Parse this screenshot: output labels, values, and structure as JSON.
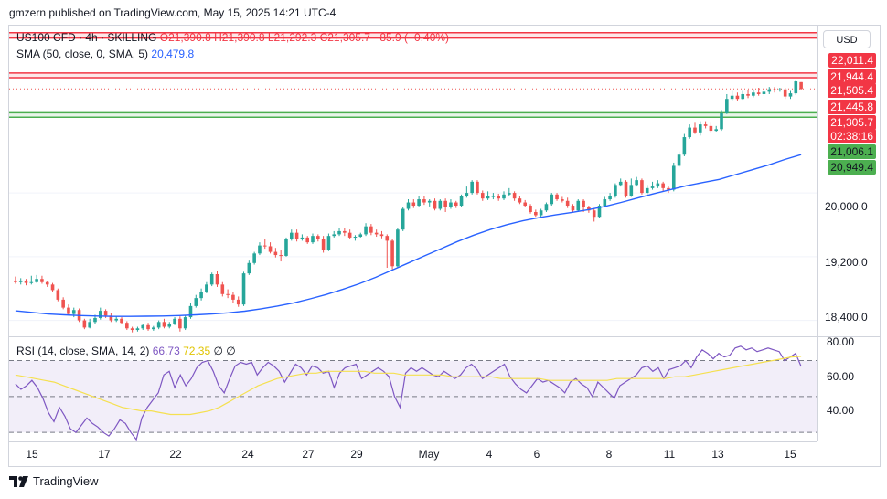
{
  "credit": "gmzern published on TradingView.com, May 15, 2025 14:21 UTC-4",
  "brand": "TradingView",
  "currency": "USD",
  "legend": {
    "symbol": "US100 CFD · 4h · SKILLING",
    "o": "O21,390.8",
    "h": "H21,390.8",
    "l": "L21,292.3",
    "c": "C21,305.7",
    "change": "−85.9 (−0.40%)",
    "sma_label": "SMA (50, close, 0, SMA, 5)",
    "sma_value": "20,479.8",
    "rsi_label": "RSI (14, close, SMA, 14, 2)",
    "rsi_value": "66.73",
    "rsi_ma_value": "72.35",
    "rsi_extra1": "∅",
    "rsi_extra2": "∅"
  },
  "colors": {
    "up": "#26a69a",
    "down": "#ef5350",
    "sma": "#2962ff",
    "rsi": "#7e57c2",
    "rsi_ma": "#f5e050",
    "resistance": "#f23645",
    "support": "#4caf50"
  },
  "price_labels": [
    {
      "text": "22,011.4",
      "style": "resist"
    },
    {
      "text": "21,944.4",
      "style": "resist"
    },
    {
      "text": "21,505.4",
      "style": "resist"
    },
    {
      "text": "21,445.8",
      "style": "resist"
    },
    {
      "text": "21,305.7",
      "style": "last"
    },
    {
      "text": "02:38:16",
      "style": "last"
    },
    {
      "text": "21,006.1",
      "style": "support"
    },
    {
      "text": "20,949.4",
      "style": "support"
    }
  ],
  "chart_data": {
    "type": "candlestick",
    "price_axis_ticks": [
      "20,000.0",
      "19,200.0",
      "18,400.0"
    ],
    "rsi_axis_ticks": [
      "80.00",
      "60.00",
      "40.00"
    ],
    "x_ticks": [
      "15",
      "17",
      "22",
      "24",
      "27",
      "29",
      "May",
      "4",
      "6",
      "8",
      "11",
      "13",
      "15"
    ],
    "price_ylim": [
      18200,
      22100
    ],
    "rsi_ylim": [
      25,
      83
    ],
    "rsi_bands": [
      70,
      50,
      30
    ],
    "levels": {
      "resistance": [
        [
          21944.4,
          22011.4
        ],
        [
          21445.8,
          21505.4
        ]
      ],
      "support": [
        [
          20949.4,
          21006.1
        ]
      ],
      "last": 21305.7
    },
    "candles": [
      [
        18900,
        18880,
        18950,
        18860
      ],
      [
        18880,
        18900,
        18930,
        18850
      ],
      [
        18900,
        18870,
        18920,
        18840
      ],
      [
        18870,
        18880,
        18960,
        18850
      ],
      [
        18880,
        18920,
        18970,
        18870
      ],
      [
        18920,
        18880,
        18960,
        18860
      ],
      [
        18880,
        18850,
        18900,
        18820
      ],
      [
        18850,
        18780,
        18870,
        18760
      ],
      [
        18780,
        18660,
        18800,
        18640
      ],
      [
        18660,
        18560,
        18690,
        18540
      ],
      [
        18560,
        18480,
        18600,
        18460
      ],
      [
        18480,
        18530,
        18560,
        18440
      ],
      [
        18530,
        18400,
        18550,
        18380
      ],
      [
        18400,
        18310,
        18420,
        18290
      ],
      [
        18310,
        18380,
        18420,
        18300
      ],
      [
        18380,
        18430,
        18470,
        18360
      ],
      [
        18430,
        18520,
        18560,
        18410
      ],
      [
        18520,
        18460,
        18540,
        18430
      ],
      [
        18460,
        18400,
        18490,
        18380
      ],
      [
        18400,
        18420,
        18450,
        18380
      ],
      [
        18420,
        18370,
        18440,
        18350
      ],
      [
        18370,
        18300,
        18390,
        18280
      ],
      [
        18300,
        18280,
        18320,
        18250
      ],
      [
        18280,
        18300,
        18320,
        18260
      ],
      [
        18300,
        18340,
        18360,
        18280
      ],
      [
        18340,
        18290,
        18370,
        18270
      ],
      [
        18290,
        18310,
        18330,
        18270
      ],
      [
        18310,
        18380,
        18400,
        18290
      ],
      [
        18380,
        18320,
        18420,
        18300
      ],
      [
        18320,
        18360,
        18380,
        18300
      ],
      [
        18360,
        18420,
        18440,
        18340
      ],
      [
        18420,
        18300,
        18450,
        18260
      ],
      [
        18300,
        18440,
        18460,
        18280
      ],
      [
        18440,
        18580,
        18620,
        18420
      ],
      [
        18580,
        18680,
        18720,
        18560
      ],
      [
        18680,
        18760,
        18800,
        18650
      ],
      [
        18760,
        18850,
        18880,
        18740
      ],
      [
        18850,
        18980,
        19000,
        18830
      ],
      [
        18980,
        18850,
        19020,
        18820
      ],
      [
        18850,
        18730,
        18880,
        18700
      ],
      [
        18730,
        18720,
        18790,
        18680
      ],
      [
        18720,
        18660,
        18760,
        18620
      ],
      [
        18660,
        18600,
        18700,
        18570
      ],
      [
        18600,
        18990,
        19010,
        18580
      ],
      [
        18990,
        19120,
        19150,
        18970
      ],
      [
        19120,
        19240,
        19260,
        19100
      ],
      [
        19240,
        19340,
        19380,
        19220
      ],
      [
        19340,
        19330,
        19420,
        19300
      ],
      [
        19330,
        19260,
        19380,
        19240
      ],
      [
        19260,
        19220,
        19310,
        19190
      ],
      [
        19220,
        19210,
        19280,
        19140
      ],
      [
        19210,
        19420,
        19440,
        19200
      ],
      [
        19420,
        19500,
        19540,
        19400
      ],
      [
        19500,
        19420,
        19540,
        19390
      ],
      [
        19420,
        19440,
        19480,
        19400
      ],
      [
        19440,
        19380,
        19460,
        19360
      ],
      [
        19380,
        19460,
        19490,
        19360
      ],
      [
        19460,
        19420,
        19480,
        19390
      ],
      [
        19420,
        19280,
        19460,
        19250
      ],
      [
        19280,
        19460,
        19490,
        19270
      ],
      [
        19460,
        19480,
        19520,
        19440
      ],
      [
        19480,
        19520,
        19560,
        19460
      ],
      [
        19520,
        19500,
        19560,
        19460
      ],
      [
        19500,
        19440,
        19540,
        19420
      ],
      [
        19440,
        19450,
        19470,
        19400
      ],
      [
        19450,
        19480,
        19500,
        19440
      ],
      [
        19480,
        19580,
        19620,
        19460
      ],
      [
        19580,
        19500,
        19610,
        19470
      ],
      [
        19500,
        19480,
        19540,
        19450
      ],
      [
        19480,
        19460,
        19520,
        19430
      ],
      [
        19460,
        19400,
        19480,
        19060
      ],
      [
        19400,
        19080,
        19420,
        19040
      ],
      [
        19080,
        19540,
        19560,
        19060
      ],
      [
        19540,
        19800,
        19820,
        19520
      ],
      [
        19800,
        19880,
        19920,
        19780
      ],
      [
        19880,
        19840,
        19920,
        19810
      ],
      [
        19840,
        19920,
        19960,
        19830
      ],
      [
        19920,
        19880,
        19960,
        19850
      ],
      [
        19880,
        19900,
        19920,
        19830
      ],
      [
        19900,
        19800,
        19930,
        19780
      ],
      [
        19800,
        19900,
        19920,
        19780
      ],
      [
        19900,
        19820,
        19930,
        19760
      ],
      [
        19820,
        19880,
        19920,
        19800
      ],
      [
        19880,
        19840,
        19900,
        19810
      ],
      [
        19840,
        19960,
        19980,
        19820
      ],
      [
        19960,
        20000,
        20080,
        19940
      ],
      [
        20000,
        20140,
        20160,
        19980
      ],
      [
        20140,
        20000,
        20160,
        19980
      ],
      [
        20000,
        19930,
        20030,
        19900
      ],
      [
        19930,
        19960,
        20020,
        19910
      ],
      [
        19960,
        19960,
        20000,
        19920
      ],
      [
        19960,
        19930,
        19990,
        19900
      ],
      [
        19930,
        19980,
        20020,
        19910
      ],
      [
        19980,
        20000,
        20060,
        19960
      ],
      [
        20000,
        19930,
        20020,
        19900
      ],
      [
        19930,
        19880,
        19960,
        19860
      ],
      [
        19880,
        19840,
        19910,
        19820
      ],
      [
        19840,
        19760,
        19860,
        19740
      ],
      [
        19760,
        19720,
        19790,
        19700
      ],
      [
        19720,
        19780,
        19800,
        19700
      ],
      [
        19780,
        19860,
        19880,
        19760
      ],
      [
        19860,
        19980,
        20000,
        19840
      ],
      [
        19980,
        19920,
        20000,
        19900
      ],
      [
        19920,
        19900,
        19950,
        19880
      ],
      [
        19900,
        19840,
        19940,
        19810
      ],
      [
        19840,
        19780,
        19860,
        19760
      ],
      [
        19780,
        19900,
        19920,
        19760
      ],
      [
        19900,
        19820,
        19920,
        19760
      ],
      [
        19820,
        19780,
        19840,
        19750
      ],
      [
        19780,
        19700,
        19800,
        19640
      ],
      [
        19700,
        19840,
        19860,
        19680
      ],
      [
        19840,
        19920,
        19950,
        19820
      ],
      [
        19920,
        19960,
        20000,
        19900
      ],
      [
        19960,
        20100,
        20120,
        19940
      ],
      [
        20100,
        20140,
        20180,
        20080
      ],
      [
        20140,
        19960,
        20160,
        19940
      ],
      [
        19960,
        20100,
        20180,
        19950
      ],
      [
        20100,
        20160,
        20200,
        20080
      ],
      [
        20160,
        20000,
        20180,
        19980
      ],
      [
        20000,
        20060,
        20100,
        19980
      ],
      [
        20060,
        20080,
        20140,
        20040
      ],
      [
        20080,
        20120,
        20160,
        20060
      ],
      [
        20120,
        20060,
        20140,
        20020
      ],
      [
        20060,
        20040,
        20080,
        20000
      ],
      [
        20040,
        20340,
        20380,
        20020
      ],
      [
        20340,
        20480,
        20520,
        20320
      ],
      [
        20480,
        20700,
        20740,
        20460
      ],
      [
        20700,
        20820,
        20860,
        20680
      ],
      [
        20820,
        20760,
        20880,
        20740
      ],
      [
        20760,
        20860,
        20900,
        20720
      ],
      [
        20860,
        20840,
        20900,
        20810
      ],
      [
        20840,
        20780,
        20880,
        20760
      ],
      [
        20780,
        20800,
        20840,
        20770
      ],
      [
        20800,
        21000,
        21040,
        20780
      ],
      [
        21000,
        21180,
        21240,
        20990
      ],
      [
        21180,
        21220,
        21280,
        21150
      ],
      [
        21220,
        21180,
        21260,
        21160
      ],
      [
        21180,
        21240,
        21280,
        21170
      ],
      [
        21240,
        21220,
        21290,
        21190
      ],
      [
        21220,
        21260,
        21300,
        21200
      ],
      [
        21260,
        21240,
        21320,
        21220
      ],
      [
        21240,
        21270,
        21310,
        21220
      ],
      [
        21270,
        21300,
        21330,
        21240
      ],
      [
        21300,
        21290,
        21330,
        21260
      ],
      [
        21290,
        21300,
        21320,
        21270
      ],
      [
        21300,
        21210,
        21320,
        21180
      ],
      [
        21210,
        21250,
        21280,
        21180
      ],
      [
        21250,
        21400,
        21420,
        21230
      ],
      [
        21390.8,
        21305.7,
        21390.8,
        21292.3
      ]
    ],
    "sma": [
      18520,
      18500,
      18480,
      18470,
      18460,
      18455,
      18450,
      18450,
      18452,
      18455,
      18460,
      18470,
      18480,
      18495,
      18515,
      18545,
      18580,
      18620,
      18670,
      18725,
      18790,
      18860,
      18940,
      19030,
      19120,
      19210,
      19300,
      19390,
      19470,
      19540,
      19600,
      19650,
      19690,
      19725,
      19755,
      19790,
      19830,
      19880,
      19935,
      19990,
      20040,
      20090,
      20130,
      20170,
      20230,
      20290,
      20350,
      20420,
      20479.8
    ],
    "rsi": [
      57,
      54,
      56,
      59,
      55,
      49,
      41,
      36,
      44,
      39,
      32,
      30,
      34,
      38,
      35,
      33,
      30,
      28,
      32,
      37,
      35,
      30,
      26,
      38,
      44,
      48,
      52,
      62,
      64,
      55,
      62,
      56,
      60,
      66,
      69,
      70,
      64,
      56,
      52,
      60,
      67,
      69,
      68,
      69,
      62,
      66,
      69,
      67,
      64,
      58,
      63,
      68,
      66,
      62,
      67,
      66,
      63,
      64,
      55,
      63,
      66,
      67,
      68,
      60,
      62,
      64,
      66,
      64,
      61,
      50,
      44,
      63,
      66,
      64,
      66,
      64,
      62,
      61,
      64,
      62,
      60,
      62,
      66,
      68,
      65,
      60,
      62,
      64,
      66,
      68,
      61,
      57,
      54,
      52,
      56,
      60,
      58,
      59,
      57,
      55,
      52,
      58,
      60,
      57,
      55,
      50,
      58,
      55,
      52,
      49,
      56,
      58,
      60,
      62,
      66,
      67,
      64,
      66,
      60,
      65,
      66,
      67,
      70,
      66,
      72,
      76,
      74,
      71,
      74,
      72,
      73,
      77,
      78,
      76,
      77,
      75,
      76,
      77,
      76,
      75,
      70,
      72,
      74,
      66.73
    ],
    "rsi_ma": [
      62,
      61,
      60,
      59,
      58,
      56,
      54,
      52,
      50,
      48,
      46,
      44,
      43,
      42,
      42,
      41,
      40,
      40,
      40,
      41,
      42,
      44,
      47,
      50,
      53,
      56,
      58,
      60,
      61,
      62,
      63,
      63,
      64,
      64,
      64,
      64,
      64,
      63,
      63,
      63,
      62,
      62,
      62,
      62,
      62,
      61,
      61,
      61,
      61,
      61,
      60,
      60,
      60,
      60,
      60,
      59,
      59,
      59,
      59,
      59,
      59,
      59,
      60,
      60,
      60,
      60,
      60,
      60,
      61,
      61,
      62,
      63,
      64,
      65,
      66,
      67,
      68,
      69,
      70,
      71,
      72,
      72.35
    ]
  }
}
